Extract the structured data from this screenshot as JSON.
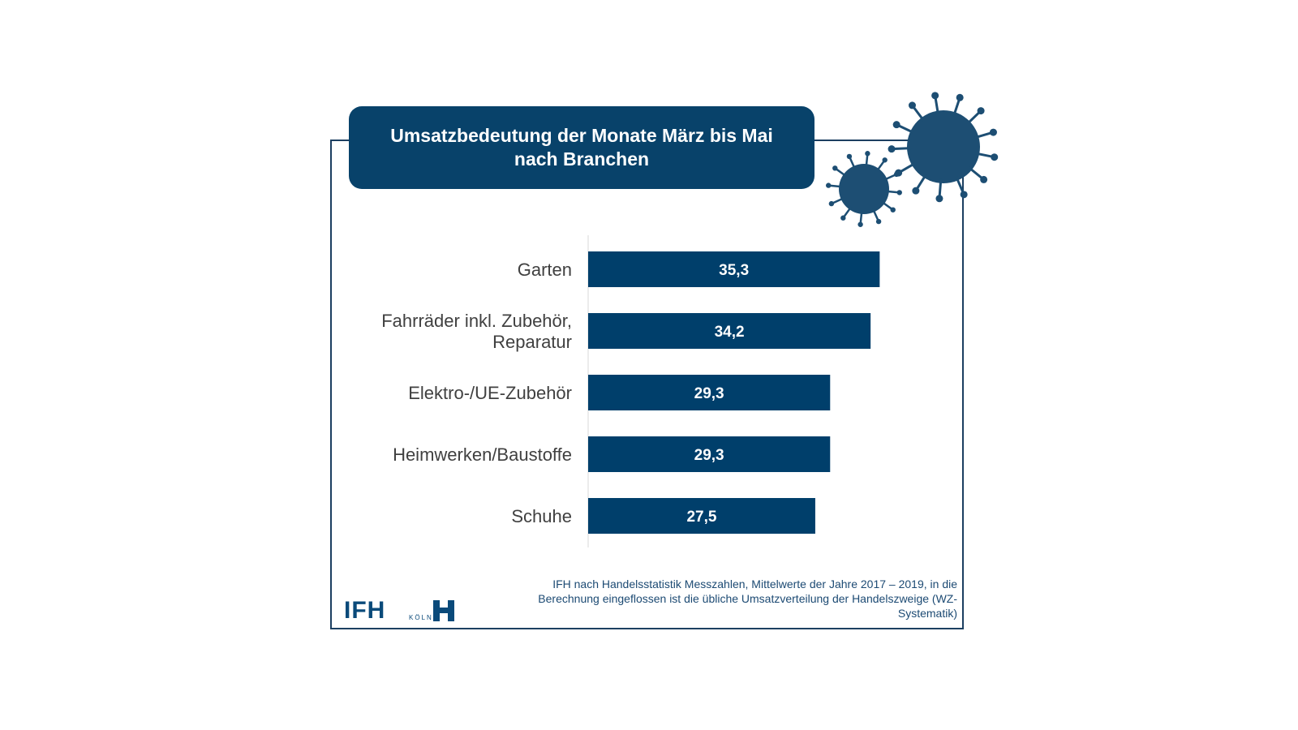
{
  "title": "Umsatzbedeutung der Monate März bis Mai nach Branchen",
  "source": "IFH nach Handelsstatistik Messzahlen, Mittelwerte der Jahre 2017 – 2019, in die Berechnung eingeflossen ist die übliche Umsatzverteilung der Handelszweige (WZ-Systematik)",
  "logo": {
    "brand": "IFH",
    "city": "KÖLN"
  },
  "colors": {
    "bar": "#003f6b",
    "title_bg": "#08426a",
    "frame": "#1c3f61",
    "label": "#404040",
    "virus": "#1d4e73"
  },
  "icons": [
    "virus-icon-large",
    "virus-icon-small"
  ],
  "chart_data": {
    "type": "bar",
    "orientation": "horizontal",
    "title": "Umsatzbedeutung der Monate März bis Mai nach Branchen",
    "categories": [
      [
        "Garten"
      ],
      [
        "Fahrräder inkl. Zubehör,",
        "Reparatur"
      ],
      [
        "Elektro-/UE-Zubehör"
      ],
      [
        "Heimwerken/Baustoffe"
      ],
      [
        "Schuhe"
      ]
    ],
    "values": [
      35.3,
      34.2,
      29.3,
      29.3,
      27.5
    ],
    "value_labels": [
      "35,3",
      "34,2",
      "29,3",
      "29,3",
      "27,5"
    ],
    "xlim": [
      0,
      40
    ],
    "grid": false,
    "axis_labels_shown": false
  }
}
